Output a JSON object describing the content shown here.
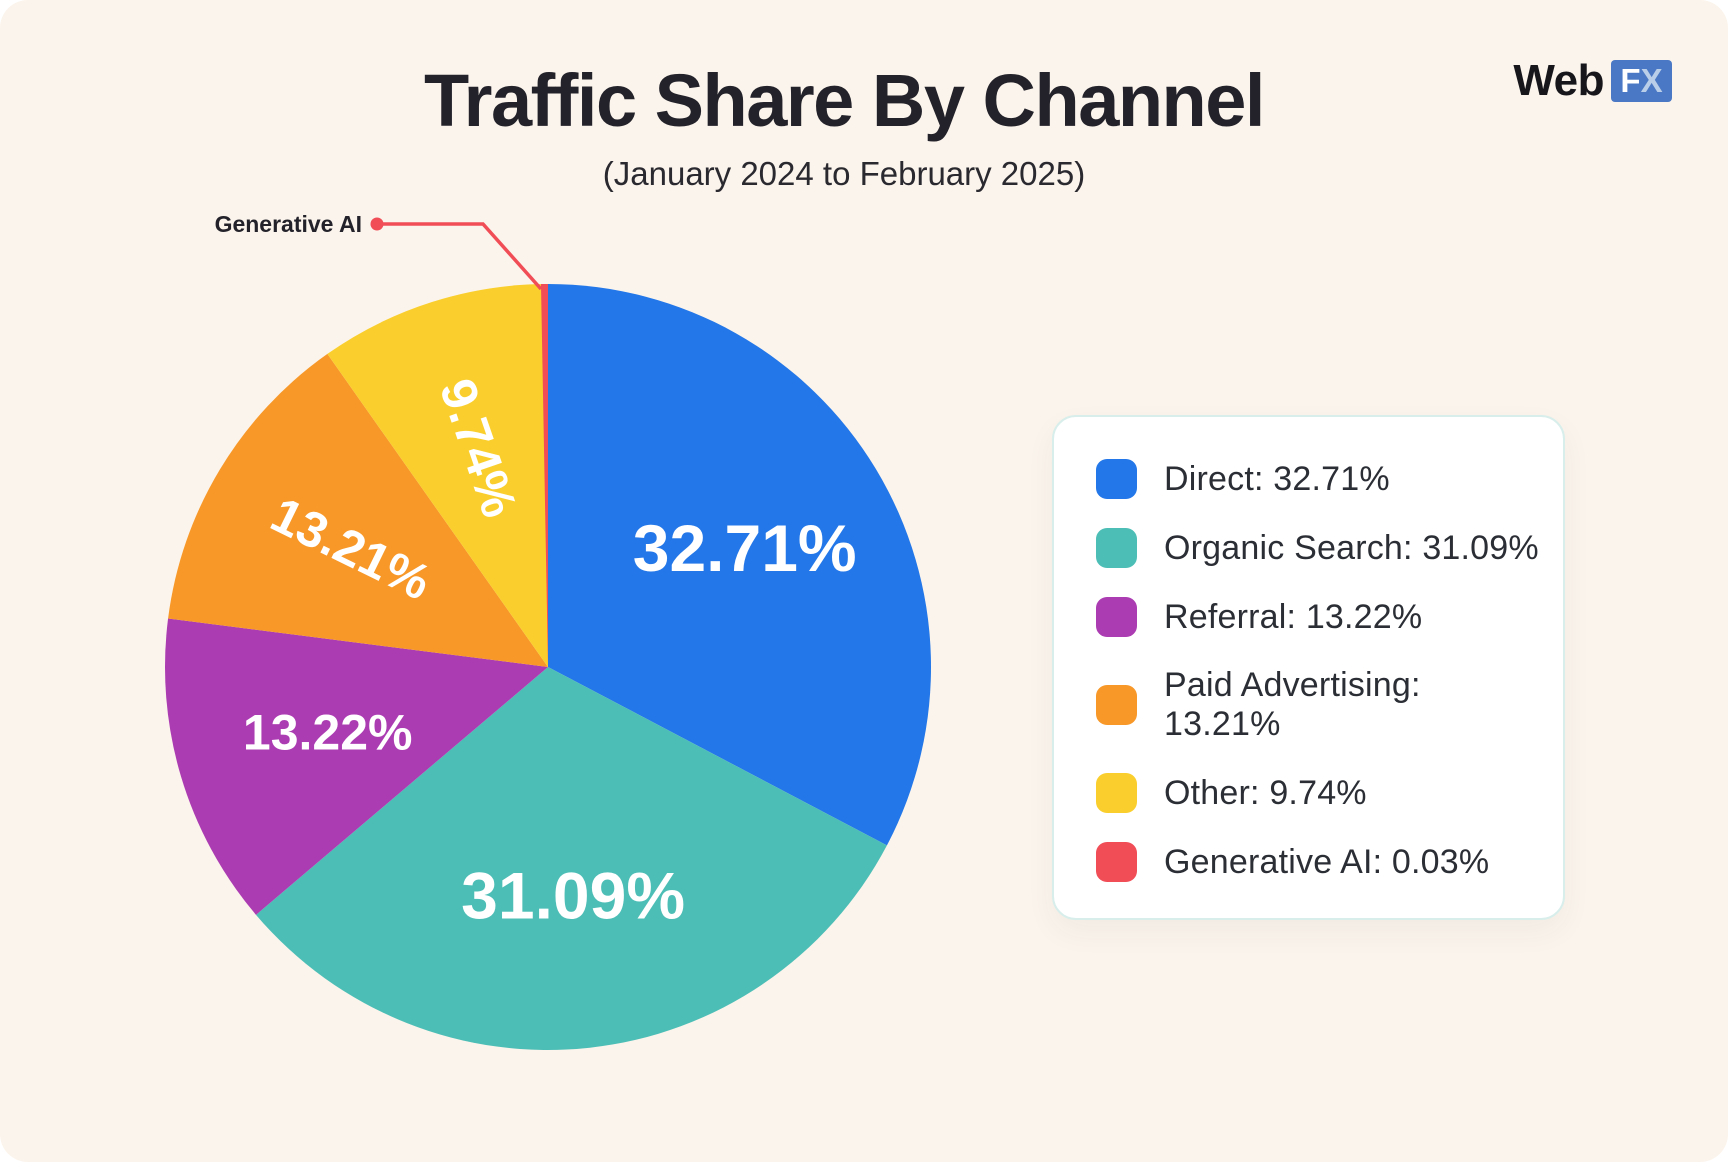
{
  "header": {
    "title": "Traffic Share By Channel",
    "subtitle": "(January 2024 to February 2025)"
  },
  "logo": {
    "web": "Web",
    "f": "F",
    "x": "X"
  },
  "callout": {
    "label": "Generative AI"
  },
  "chart_data": {
    "type": "pie",
    "title": "Traffic Share By Channel",
    "subtitle": "(January 2024 to February 2025)",
    "unit": "%",
    "direction": "clockwise",
    "start_angle": "12-oclock",
    "legend_position": "right",
    "slices": [
      {
        "label": "Direct",
        "value": 32.71,
        "color": "#2377E8",
        "slice_label": "32.71%"
      },
      {
        "label": "Organic Search",
        "value": 31.09,
        "color": "#4DBEB6",
        "slice_label": "31.09%"
      },
      {
        "label": "Referral",
        "value": 13.22,
        "color": "#AC3CB2",
        "slice_label": "13.22%"
      },
      {
        "label": "Paid Advertising",
        "value": 13.21,
        "color": "#F79829",
        "slice_label": "13.21%"
      },
      {
        "label": "Other",
        "value": 9.74,
        "color": "#FACF2D",
        "slice_label": "9.74%"
      },
      {
        "label": "Generative AI",
        "value": 0.03,
        "color": "#F04D57",
        "slice_label": "",
        "callout_label": "Generative AI"
      }
    ],
    "legend_labels": [
      "Direct: 32.71%",
      "Organic Search: 31.09%",
      "Referral: 13.22%",
      "Paid Advertising: 13.21%",
      "Other: 9.74%",
      "Generative AI: 0.03%"
    ]
  },
  "colors": {
    "background": "#FBF4EC",
    "text": "#23222A",
    "legend_border": "#D8EEEB",
    "legend_bg": "#FFFFFF",
    "callout_line": "#F04D57",
    "logo_fx_bg": "#4A78C4",
    "logo_fx_x": "#B9CEE8"
  }
}
